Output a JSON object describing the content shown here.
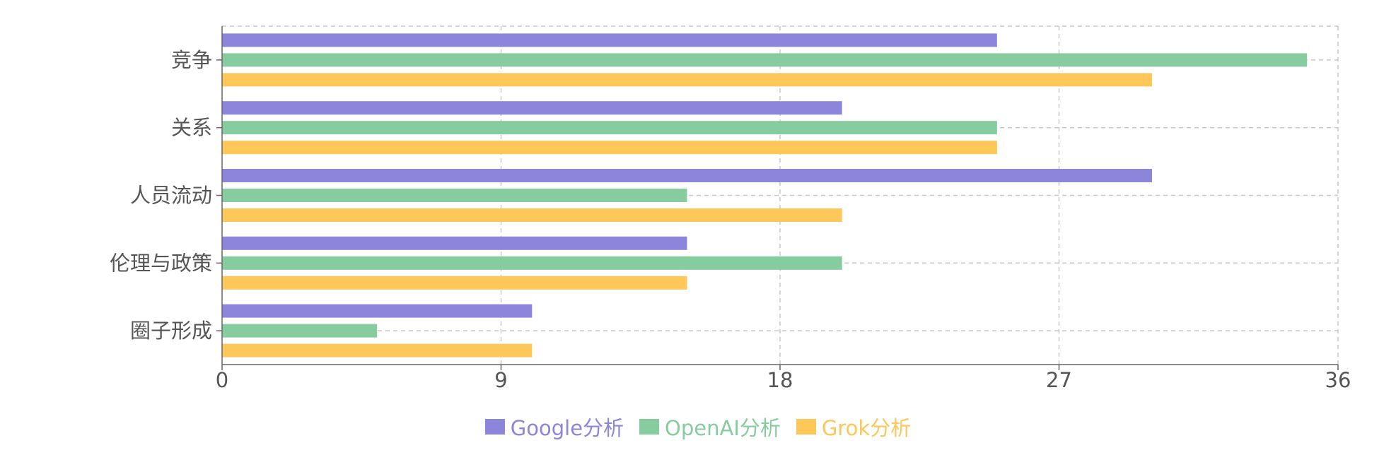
{
  "chart_data": {
    "type": "bar",
    "orientation": "horizontal",
    "categories": [
      "竞争",
      "关系",
      "人员流动",
      "伦理与政策",
      "圈子形成"
    ],
    "series": [
      {
        "name": "Google分析",
        "color": "#8b86dc",
        "values": [
          25,
          20,
          30,
          15,
          10
        ]
      },
      {
        "name": "OpenAI分析",
        "color": "#86cc9f",
        "values": [
          35,
          25,
          15,
          20,
          5
        ]
      },
      {
        "name": "Grok分析",
        "color": "#fec75a",
        "values": [
          30,
          25,
          20,
          15,
          10
        ]
      }
    ],
    "xlim": [
      0,
      36
    ],
    "xticks": [
      "0",
      "9",
      "18",
      "27",
      "36"
    ],
    "grid": true,
    "legend_position": "bottom-center",
    "title": "",
    "xlabel": "",
    "ylabel": ""
  }
}
